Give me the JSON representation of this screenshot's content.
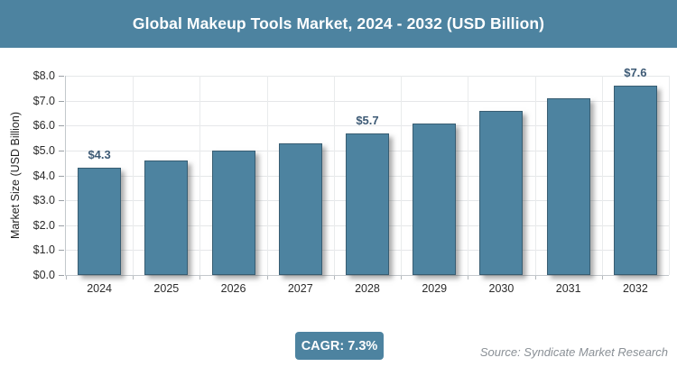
{
  "header": {
    "title": "Global Makeup Tools Market, 2024 - 2032 (USD Billion)"
  },
  "chart_data": {
    "type": "bar",
    "title": "Global Makeup Tools Market, 2024 - 2032 (USD Billion)",
    "categories": [
      "2024",
      "2025",
      "2026",
      "2027",
      "2028",
      "2029",
      "2030",
      "2031",
      "2032"
    ],
    "values": [
      4.3,
      4.6,
      5.0,
      5.3,
      5.7,
      6.1,
      6.6,
      7.1,
      7.6
    ],
    "point_labels": [
      "$4.3",
      "",
      "",
      "",
      "$5.7",
      "",
      "",
      "",
      "$7.6"
    ],
    "xlabel": "",
    "ylabel": "Market Size (USD Billion)",
    "ylim": [
      0,
      8
    ],
    "y_tick_step": 1,
    "y_tick_labels": [
      "$0.0",
      "$1.0",
      "$2.0",
      "$3.0",
      "$4.0",
      "$5.0",
      "$6.0",
      "$7.0",
      "$8.0"
    ],
    "grid": true,
    "legend": "none"
  },
  "footer": {
    "cagr_label": "CAGR: 7.3%",
    "source": "Source: Syndicate Market Research"
  },
  "colors": {
    "accent": "#4d83a0",
    "bar": "#4d83a0",
    "title_bar_bg": "#4d83a0",
    "title_text": "#ffffff",
    "value_label": "#3d5a75",
    "axis_text": "#2b2b2b",
    "gridline": "#e5e7e9",
    "source_text": "#8a9096",
    "background": "#ffffff"
  }
}
